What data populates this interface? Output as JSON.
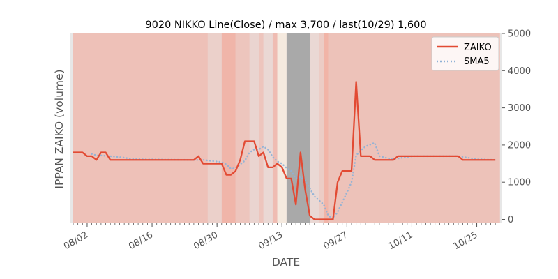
{
  "chart_data": {
    "type": "line",
    "title": "9020 NIKKO Line(Close) / max 3,700 / last(10/29) 1,600",
    "xlabel": "DATE",
    "ylabel": "IPPAN ZAIKO (volume)",
    "ylim": [
      0,
      5000
    ],
    "yticks": [
      0,
      1000,
      2000,
      3000,
      4000,
      5000
    ],
    "ytick_labels": [
      "0",
      "1000",
      "2000",
      "3000",
      "4000",
      "5000"
    ],
    "y_axis_side": "right",
    "x_start_date": "2019-07-30",
    "xticks": [
      "08/02",
      "08/16",
      "08/30",
      "09/13",
      "09/27",
      "10/11",
      "10/25"
    ],
    "xtick_dates": [
      "2019-08-02",
      "2019-08-16",
      "2019-08-30",
      "2019-09-13",
      "2019-09-27",
      "2019-10-11",
      "2019-10-25"
    ],
    "grid": false,
    "legend_position": "top-right",
    "background_shading": "daily vertical bands, red-tinted with varying intensity; gray band at missing-data period",
    "series": [
      {
        "name": "ZAIKO",
        "style": "solid",
        "color": "#e24a33",
        "points": [
          [
            "2019-07-30",
            1800
          ],
          [
            "2019-08-01",
            1800
          ],
          [
            "2019-08-02",
            1700
          ],
          [
            "2019-08-03",
            1700
          ],
          [
            "2019-08-04",
            1600
          ],
          [
            "2019-08-05",
            1800
          ],
          [
            "2019-08-06",
            1800
          ],
          [
            "2019-08-07",
            1600
          ],
          [
            "2019-08-25",
            1600
          ],
          [
            "2019-08-26",
            1700
          ],
          [
            "2019-08-27",
            1500
          ],
          [
            "2019-08-31",
            1500
          ],
          [
            "2019-09-01",
            1200
          ],
          [
            "2019-09-02",
            1200
          ],
          [
            "2019-09-03",
            1300
          ],
          [
            "2019-09-04",
            1600
          ],
          [
            "2019-09-05",
            2100
          ],
          [
            "2019-09-07",
            2100
          ],
          [
            "2019-09-08",
            1700
          ],
          [
            "2019-09-09",
            1800
          ],
          [
            "2019-09-10",
            1400
          ],
          [
            "2019-09-11",
            1400
          ],
          [
            "2019-09-12",
            1500
          ],
          [
            "2019-09-13",
            1400
          ],
          [
            "2019-09-14",
            1100
          ],
          [
            "2019-09-15",
            1100
          ],
          [
            "2019-09-16",
            400
          ],
          [
            "2019-09-17",
            1800
          ],
          [
            "2019-09-18",
            800
          ],
          [
            "2019-09-19",
            100
          ],
          [
            "2019-09-20",
            0
          ],
          [
            "2019-09-24",
            0
          ],
          [
            "2019-09-25",
            1000
          ],
          [
            "2019-09-26",
            1300
          ],
          [
            "2019-09-28",
            1300
          ],
          [
            "2019-09-29",
            3700
          ],
          [
            "2019-09-30",
            1700
          ],
          [
            "2019-10-02",
            1700
          ],
          [
            "2019-10-03",
            1600
          ],
          [
            "2019-10-07",
            1600
          ],
          [
            "2019-10-08",
            1700
          ],
          [
            "2019-10-21",
            1700
          ],
          [
            "2019-10-22",
            1600
          ],
          [
            "2019-10-29",
            1600
          ]
        ]
      },
      {
        "name": "SMA5",
        "style": "dotted",
        "color": "#8eb1d6",
        "points": [
          [
            "2019-08-03",
            1760
          ],
          [
            "2019-08-04",
            1720
          ],
          [
            "2019-08-05",
            1720
          ],
          [
            "2019-08-07",
            1700
          ],
          [
            "2019-08-10",
            1660
          ],
          [
            "2019-08-12",
            1620
          ],
          [
            "2019-08-24",
            1600
          ],
          [
            "2019-08-27",
            1600
          ],
          [
            "2019-08-31",
            1540
          ],
          [
            "2019-09-01",
            1480
          ],
          [
            "2019-09-02",
            1360
          ],
          [
            "2019-09-03",
            1380
          ],
          [
            "2019-09-05",
            1580
          ],
          [
            "2019-09-06",
            1800
          ],
          [
            "2019-09-07",
            1880
          ],
          [
            "2019-09-08",
            1880
          ],
          [
            "2019-09-09",
            1960
          ],
          [
            "2019-09-10",
            1880
          ],
          [
            "2019-09-11",
            1680
          ],
          [
            "2019-09-12",
            1560
          ],
          [
            "2019-09-13",
            1500
          ],
          [
            "2019-09-14",
            1380
          ],
          [
            "2019-09-15",
            1300
          ],
          [
            "2019-09-16",
            1100
          ],
          [
            "2019-09-17",
            1140
          ],
          [
            "2019-09-18",
            1040
          ],
          [
            "2019-09-19",
            840
          ],
          [
            "2019-09-20",
            620
          ],
          [
            "2019-09-22",
            400
          ],
          [
            "2019-09-23",
            100
          ],
          [
            "2019-09-24",
            20
          ],
          [
            "2019-09-25",
            200
          ],
          [
            "2019-09-26",
            460
          ],
          [
            "2019-09-27",
            720
          ],
          [
            "2019-09-28",
            1000
          ],
          [
            "2019-09-29",
            1720
          ],
          [
            "2019-09-30",
            1860
          ],
          [
            "2019-10-01",
            1960
          ],
          [
            "2019-10-03",
            2060
          ],
          [
            "2019-10-04",
            1700
          ],
          [
            "2019-10-06",
            1640
          ],
          [
            "2019-10-07",
            1620
          ],
          [
            "2019-10-08",
            1640
          ],
          [
            "2019-10-09",
            1660
          ],
          [
            "2019-10-10",
            1680
          ],
          [
            "2019-10-11",
            1700
          ],
          [
            "2019-10-21",
            1700
          ],
          [
            "2019-10-22",
            1680
          ],
          [
            "2019-10-23",
            1660
          ],
          [
            "2019-10-25",
            1620
          ],
          [
            "2019-10-29",
            1600
          ]
        ]
      }
    ]
  }
}
